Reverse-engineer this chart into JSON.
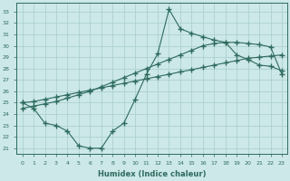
{
  "title": "",
  "xlabel": "Humidex (Indice chaleur)",
  "bg_color": "#cce8e8",
  "line_color": "#2e6b5e",
  "xlim": [
    -0.5,
    23.5
  ],
  "ylim": [
    20.5,
    33.8
  ],
  "xticks": [
    0,
    1,
    2,
    3,
    4,
    5,
    6,
    7,
    8,
    9,
    10,
    11,
    12,
    13,
    14,
    15,
    16,
    17,
    18,
    19,
    20,
    21,
    22,
    23
  ],
  "yticks": [
    21,
    22,
    23,
    24,
    25,
    26,
    27,
    28,
    29,
    30,
    31,
    32,
    33
  ],
  "series1_x": [
    0,
    1,
    2,
    3,
    4,
    5,
    6,
    7,
    8,
    9,
    10,
    11,
    12,
    13,
    14,
    15,
    16,
    17,
    18,
    19,
    20,
    21,
    22,
    23
  ],
  "series1_y": [
    25.0,
    25.1,
    25.3,
    25.5,
    25.7,
    25.9,
    26.1,
    26.3,
    26.5,
    26.7,
    26.9,
    27.1,
    27.3,
    27.5,
    27.7,
    27.9,
    28.1,
    28.3,
    28.5,
    28.7,
    28.9,
    29.0,
    29.1,
    29.2
  ],
  "series2_x": [
    0,
    1,
    2,
    3,
    4,
    5,
    6,
    7,
    8,
    9,
    10,
    11,
    12,
    13,
    14,
    15,
    16,
    17,
    18,
    19,
    20,
    21,
    22,
    23
  ],
  "series2_y": [
    24.5,
    24.7,
    24.9,
    25.1,
    25.4,
    25.7,
    26.0,
    26.4,
    26.8,
    27.2,
    27.6,
    28.0,
    28.4,
    28.8,
    29.2,
    29.6,
    30.0,
    30.2,
    30.3,
    30.3,
    30.2,
    30.1,
    29.9,
    27.5
  ],
  "series3_x": [
    0,
    1,
    2,
    3,
    4,
    5,
    6,
    7,
    8,
    9,
    10,
    11,
    12,
    13,
    14,
    15,
    16,
    17,
    18,
    19,
    20,
    21,
    22,
    23
  ],
  "series3_y": [
    25.0,
    24.5,
    23.2,
    23.0,
    22.5,
    21.2,
    21.0,
    21.0,
    22.5,
    23.2,
    25.3,
    27.5,
    29.3,
    33.2,
    31.5,
    31.1,
    30.8,
    30.5,
    30.3,
    29.2,
    28.8,
    28.3,
    28.2,
    27.8
  ],
  "grid_color": "#a8cccc",
  "marker": "+",
  "markersize": 4,
  "lw": 0.8
}
